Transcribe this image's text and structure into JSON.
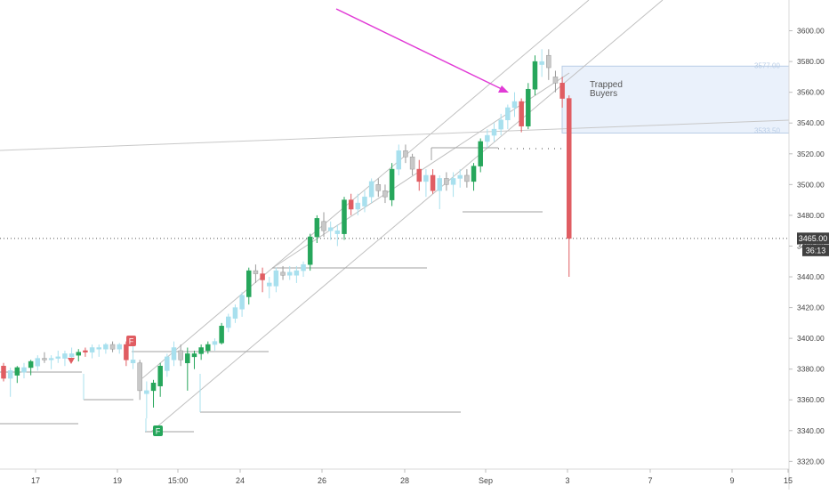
{
  "chart_data": {
    "type": "candlestick",
    "title": "",
    "xlabel": "",
    "ylabel": "",
    "ylim": [
      3315,
      3620
    ],
    "x_tick_labels": [
      "17",
      "19",
      "15:00",
      "24",
      "26",
      "28",
      "Sep",
      "3",
      "7",
      "9",
      "15"
    ],
    "y_ticks": [
      3320,
      3340,
      3360,
      3380,
      3400,
      3420,
      3440,
      3460,
      3480,
      3500,
      3520,
      3540,
      3560,
      3580,
      3600
    ],
    "y_tick_labels": [
      "3320.00",
      "3340.00",
      "3360.00",
      "3380.00",
      "3400.00",
      "3420.00",
      "3440.00",
      "3460.00",
      "3480.00",
      "3500.00",
      "3520.00",
      "3540.00",
      "3560.00",
      "3580.00",
      "3600.00"
    ],
    "current_price": {
      "value": 3465,
      "label": "3465.00",
      "countdown": "36:13"
    },
    "zone": {
      "label_line1": "Trapped",
      "label_line2": "Buyers",
      "top": 3577,
      "top_label": "3577.00",
      "bottom": 3533.5,
      "bottom_label": "3533.50"
    },
    "markers": {
      "top_fractal": "F",
      "bottom_fractal": "F"
    },
    "colors": {
      "up_bright": "#26a65b",
      "up_pale": "#a8e0ee",
      "down_bright": "#e05d62",
      "down_pale": "#c8c8c8",
      "channel": "#c0c0c0",
      "arrow": "#e13bd6",
      "zone_fill": "#eaf1fb",
      "zone_border": "#b9cde6",
      "level": "#a0a0a0",
      "fractal": "#e05d62",
      "fractal_low": "#26a65b"
    },
    "candles": [
      {
        "o": 3382,
        "h": 3384,
        "l": 3372,
        "c": 3374,
        "s": "db"
      },
      {
        "o": 3374,
        "h": 3381,
        "l": 3362,
        "c": 3379,
        "s": "up"
      },
      {
        "o": 3376,
        "h": 3382,
        "l": 3371,
        "c": 3381,
        "s": "ub"
      },
      {
        "o": 3378,
        "h": 3384,
        "l": 3374,
        "c": 3381,
        "s": "up"
      },
      {
        "o": 3381,
        "h": 3386,
        "l": 3376,
        "c": 3385,
        "s": "ub"
      },
      {
        "o": 3382,
        "h": 3389,
        "l": 3379,
        "c": 3387,
        "s": "up"
      },
      {
        "o": 3387,
        "h": 3391,
        "l": 3384,
        "c": 3386,
        "s": "dp"
      },
      {
        "o": 3386,
        "h": 3389,
        "l": 3380,
        "c": 3387,
        "s": "up"
      },
      {
        "o": 3387,
        "h": 3392,
        "l": 3384,
        "c": 3388,
        "s": "up"
      },
      {
        "o": 3387,
        "h": 3392,
        "l": 3382,
        "c": 3390,
        "s": "up"
      },
      {
        "o": 3390,
        "h": 3394,
        "l": 3385,
        "c": 3388,
        "s": "up"
      },
      {
        "o": 3389,
        "h": 3393,
        "l": 3385,
        "c": 3391,
        "s": "ub"
      },
      {
        "o": 3391,
        "h": 3394,
        "l": 3388,
        "c": 3392,
        "s": "db"
      },
      {
        "o": 3391,
        "h": 3396,
        "l": 3387,
        "c": 3394,
        "s": "up"
      },
      {
        "o": 3394,
        "h": 3396,
        "l": 3388,
        "c": 3393,
        "s": "up"
      },
      {
        "o": 3393,
        "h": 3397,
        "l": 3390,
        "c": 3396,
        "s": "up"
      },
      {
        "o": 3396,
        "h": 3398,
        "l": 3391,
        "c": 3393,
        "s": "dp"
      },
      {
        "o": 3393,
        "h": 3397,
        "l": 3390,
        "c": 3396,
        "s": "up"
      },
      {
        "o": 3396,
        "h": 3398,
        "l": 3382,
        "c": 3386,
        "s": "db"
      },
      {
        "o": 3386,
        "h": 3396,
        "l": 3380,
        "c": 3384,
        "s": "up"
      },
      {
        "o": 3384,
        "h": 3386,
        "l": 3360,
        "c": 3366,
        "s": "dp"
      },
      {
        "o": 3364,
        "h": 3372,
        "l": 3348,
        "c": 3366,
        "s": "up"
      },
      {
        "o": 3366,
        "h": 3373,
        "l": 3355,
        "c": 3371,
        "s": "ub"
      },
      {
        "o": 3369,
        "h": 3384,
        "l": 3362,
        "c": 3382,
        "s": "ub"
      },
      {
        "o": 3379,
        "h": 3390,
        "l": 3375,
        "c": 3388,
        "s": "up"
      },
      {
        "o": 3386,
        "h": 3398,
        "l": 3382,
        "c": 3394,
        "s": "up"
      },
      {
        "o": 3392,
        "h": 3396,
        "l": 3382,
        "c": 3386,
        "s": "dp"
      },
      {
        "o": 3384,
        "h": 3394,
        "l": 3366,
        "c": 3390,
        "s": "ub"
      },
      {
        "o": 3388,
        "h": 3392,
        "l": 3380,
        "c": 3390,
        "s": "ub"
      },
      {
        "o": 3390,
        "h": 3396,
        "l": 3386,
        "c": 3394,
        "s": "ub"
      },
      {
        "o": 3392,
        "h": 3398,
        "l": 3390,
        "c": 3396,
        "s": "ub"
      },
      {
        "o": 3396,
        "h": 3400,
        "l": 3392,
        "c": 3398,
        "s": "up"
      },
      {
        "o": 3397,
        "h": 3410,
        "l": 3396,
        "c": 3408,
        "s": "ub"
      },
      {
        "o": 3407,
        "h": 3416,
        "l": 3404,
        "c": 3414,
        "s": "up"
      },
      {
        "o": 3413,
        "h": 3422,
        "l": 3410,
        "c": 3420,
        "s": "up"
      },
      {
        "o": 3419,
        "h": 3430,
        "l": 3414,
        "c": 3428,
        "s": "up"
      },
      {
        "o": 3427,
        "h": 3446,
        "l": 3422,
        "c": 3444,
        "s": "ub"
      },
      {
        "o": 3444,
        "h": 3448,
        "l": 3436,
        "c": 3442,
        "s": "dp"
      },
      {
        "o": 3442,
        "h": 3446,
        "l": 3430,
        "c": 3438,
        "s": "db"
      },
      {
        "o": 3436,
        "h": 3440,
        "l": 3426,
        "c": 3434,
        "s": "up"
      },
      {
        "o": 3434,
        "h": 3446,
        "l": 3430,
        "c": 3444,
        "s": "up"
      },
      {
        "o": 3443,
        "h": 3447,
        "l": 3438,
        "c": 3441,
        "s": "dp"
      },
      {
        "o": 3441,
        "h": 3447,
        "l": 3438,
        "c": 3443,
        "s": "up"
      },
      {
        "o": 3441,
        "h": 3447,
        "l": 3436,
        "c": 3444,
        "s": "up"
      },
      {
        "o": 3444,
        "h": 3450,
        "l": 3440,
        "c": 3448,
        "s": "up"
      },
      {
        "o": 3448,
        "h": 3468,
        "l": 3444,
        "c": 3466,
        "s": "ub"
      },
      {
        "o": 3466,
        "h": 3480,
        "l": 3462,
        "c": 3478,
        "s": "ub"
      },
      {
        "o": 3476,
        "h": 3482,
        "l": 3466,
        "c": 3470,
        "s": "dp"
      },
      {
        "o": 3470,
        "h": 3476,
        "l": 3464,
        "c": 3472,
        "s": "up"
      },
      {
        "o": 3470,
        "h": 3474,
        "l": 3460,
        "c": 3468,
        "s": "up"
      },
      {
        "o": 3468,
        "h": 3492,
        "l": 3464,
        "c": 3490,
        "s": "ub"
      },
      {
        "o": 3490,
        "h": 3494,
        "l": 3480,
        "c": 3484,
        "s": "db"
      },
      {
        "o": 3484,
        "h": 3494,
        "l": 3480,
        "c": 3488,
        "s": "up"
      },
      {
        "o": 3486,
        "h": 3496,
        "l": 3482,
        "c": 3492,
        "s": "up"
      },
      {
        "o": 3492,
        "h": 3504,
        "l": 3488,
        "c": 3502,
        "s": "up"
      },
      {
        "o": 3500,
        "h": 3504,
        "l": 3492,
        "c": 3496,
        "s": "dp"
      },
      {
        "o": 3496,
        "h": 3500,
        "l": 3488,
        "c": 3492,
        "s": "dp"
      },
      {
        "o": 3490,
        "h": 3514,
        "l": 3486,
        "c": 3510,
        "s": "ub"
      },
      {
        "o": 3510,
        "h": 3526,
        "l": 3506,
        "c": 3522,
        "s": "up"
      },
      {
        "o": 3522,
        "h": 3526,
        "l": 3514,
        "c": 3518,
        "s": "dp"
      },
      {
        "o": 3518,
        "h": 3520,
        "l": 3506,
        "c": 3510,
        "s": "dp"
      },
      {
        "o": 3510,
        "h": 3516,
        "l": 3496,
        "c": 3502,
        "s": "db"
      },
      {
        "o": 3502,
        "h": 3510,
        "l": 3492,
        "c": 3506,
        "s": "up"
      },
      {
        "o": 3506,
        "h": 3510,
        "l": 3494,
        "c": 3496,
        "s": "db"
      },
      {
        "o": 3496,
        "h": 3506,
        "l": 3484,
        "c": 3504,
        "s": "up"
      },
      {
        "o": 3504,
        "h": 3508,
        "l": 3496,
        "c": 3500,
        "s": "dp"
      },
      {
        "o": 3500,
        "h": 3508,
        "l": 3492,
        "c": 3504,
        "s": "up"
      },
      {
        "o": 3504,
        "h": 3510,
        "l": 3498,
        "c": 3506,
        "s": "up"
      },
      {
        "o": 3506,
        "h": 3510,
        "l": 3498,
        "c": 3502,
        "s": "dp"
      },
      {
        "o": 3502,
        "h": 3514,
        "l": 3496,
        "c": 3512,
        "s": "ub"
      },
      {
        "o": 3512,
        "h": 3530,
        "l": 3508,
        "c": 3528,
        "s": "ub"
      },
      {
        "o": 3528,
        "h": 3536,
        "l": 3524,
        "c": 3532,
        "s": "up"
      },
      {
        "o": 3532,
        "h": 3540,
        "l": 3528,
        "c": 3536,
        "s": "up"
      },
      {
        "o": 3536,
        "h": 3546,
        "l": 3532,
        "c": 3542,
        "s": "up"
      },
      {
        "o": 3542,
        "h": 3552,
        "l": 3536,
        "c": 3550,
        "s": "up"
      },
      {
        "o": 3550,
        "h": 3560,
        "l": 3544,
        "c": 3554,
        "s": "up"
      },
      {
        "o": 3554,
        "h": 3556,
        "l": 3534,
        "c": 3538,
        "s": "db"
      },
      {
        "o": 3538,
        "h": 3566,
        "l": 3536,
        "c": 3562,
        "s": "ub"
      },
      {
        "o": 3562,
        "h": 3584,
        "l": 3558,
        "c": 3580,
        "s": "ub"
      },
      {
        "o": 3580,
        "h": 3588,
        "l": 3570,
        "c": 3578,
        "s": "up"
      },
      {
        "o": 3576,
        "h": 3588,
        "l": 3568,
        "c": 3584,
        "s": "dp"
      },
      {
        "o": 3570,
        "h": 3574,
        "l": 3560,
        "c": 3566,
        "s": "dp"
      },
      {
        "o": 3566,
        "h": 3570,
        "l": 3550,
        "c": 3556,
        "s": "db"
      },
      {
        "o": 3556,
        "h": 3558,
        "l": 3440,
        "c": 3465,
        "s": "db"
      }
    ]
  }
}
